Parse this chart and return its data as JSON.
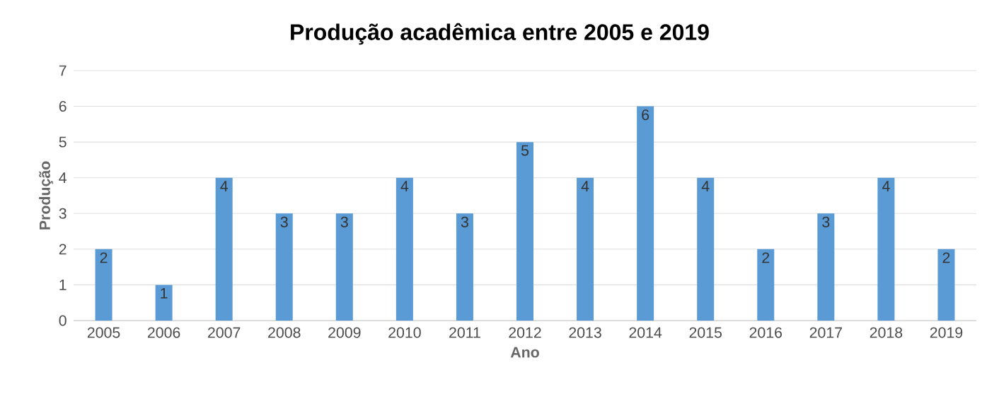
{
  "chart_data": {
    "type": "bar",
    "title": "Produção acadêmica entre 2005 e 2019",
    "xlabel": "Ano",
    "ylabel": "Produção",
    "categories": [
      "2005",
      "2006",
      "2007",
      "2008",
      "2009",
      "2010",
      "2011",
      "2012",
      "2013",
      "2014",
      "2015",
      "2016",
      "2017",
      "2018",
      "2019"
    ],
    "values": [
      2,
      1,
      4,
      3,
      3,
      4,
      3,
      5,
      4,
      6,
      4,
      2,
      3,
      4,
      2
    ],
    "color": "#5b9bd5",
    "ylim": [
      0,
      7
    ],
    "yticks": [
      0,
      1,
      2,
      3,
      4,
      5,
      6,
      7
    ],
    "grid": "y",
    "data_labels": true
  }
}
